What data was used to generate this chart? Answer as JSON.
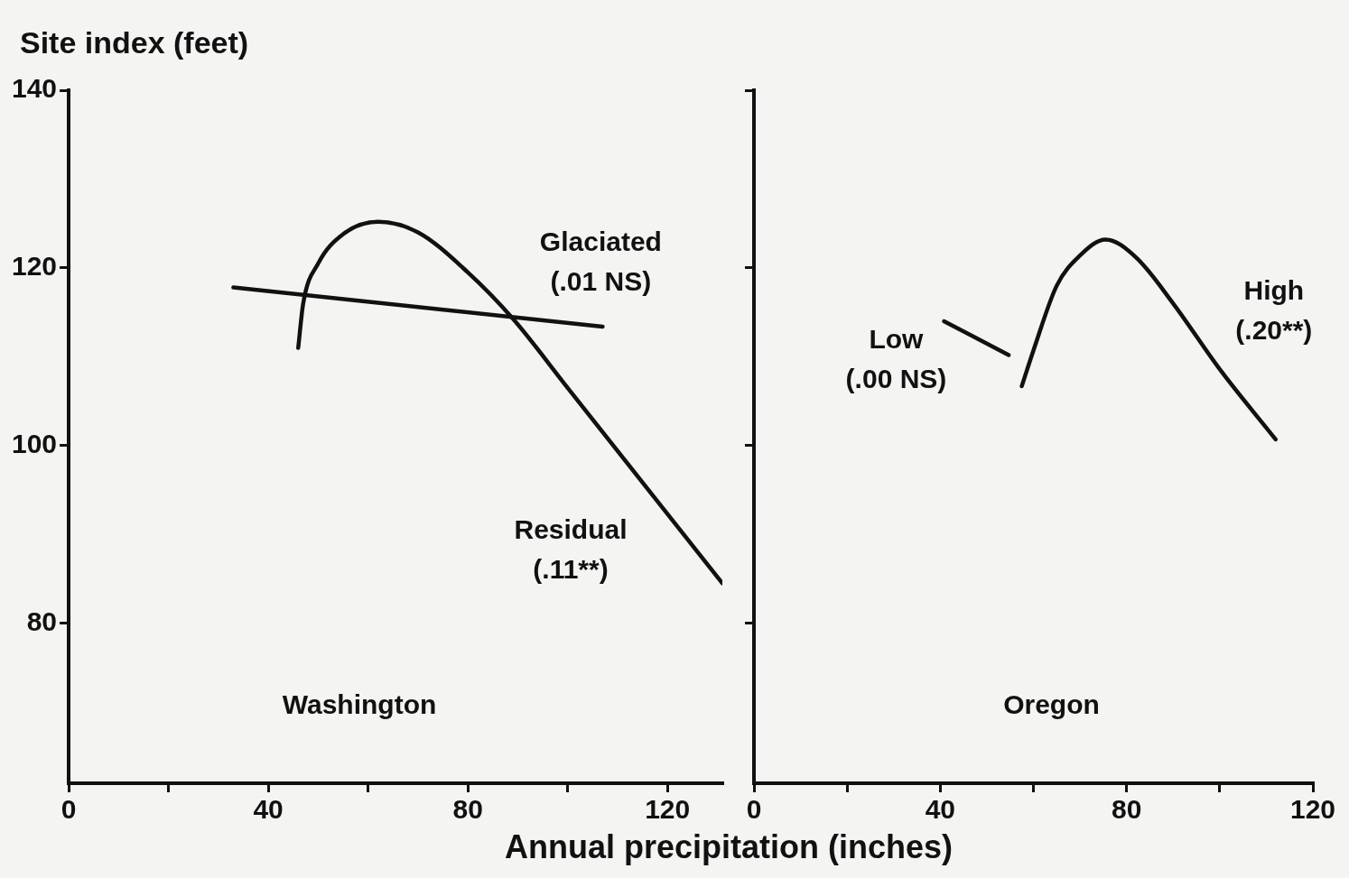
{
  "chart_data": [
    {
      "type": "line",
      "ylabel": "Site index (feet)",
      "xlabel": "Annual precipitation (inches)",
      "annotations": [
        "Washington"
      ],
      "xlim": [
        0,
        131
      ],
      "xticks": [
        0,
        {
          "value": 20,
          "label": null
        },
        40,
        {
          "value": 60,
          "label": null
        },
        80,
        {
          "value": 100,
          "label": null
        },
        120
      ],
      "ylim": [
        62,
        140
      ],
      "yticks": [
        80,
        100,
        120,
        140
      ],
      "grid": false,
      "legend": false,
      "marker": "none",
      "line_style": "solid",
      "series": [
        {
          "name": "Glaciated (.01 NS)",
          "color": "#111111",
          "x": [
            33,
            107
          ],
          "values": [
            117.8,
            113.4
          ]
        },
        {
          "name": "Residual (.11**)",
          "color": "#111111",
          "x": [
            46,
            47,
            50,
            55,
            62,
            70,
            80,
            89,
            100,
            131
          ],
          "values": [
            111,
            116,
            120.5,
            123.8,
            125.2,
            124,
            119.5,
            114.3,
            106.5,
            84.5
          ]
        }
      ]
    },
    {
      "type": "line",
      "annotations": [
        "Oregon"
      ],
      "tick_labels": "x",
      "xlim": [
        0,
        120
      ],
      "xticks": [
        0,
        {
          "value": 20,
          "label": null
        },
        40,
        {
          "value": 60,
          "label": null
        },
        80,
        {
          "value": 100,
          "label": null
        },
        120
      ],
      "ylim": [
        62,
        140
      ],
      "yticks": [
        {
          "value": 80,
          "label": null
        },
        {
          "value": 100,
          "label": null
        },
        {
          "value": 120,
          "label": null
        },
        {
          "value": 140,
          "label": null
        }
      ],
      "grid": false,
      "legend": false,
      "marker": "none",
      "line_style": "solid",
      "series": [
        {
          "name": "Low (.00 NS)",
          "color": "#111111",
          "x": [
            40.8,
            54.7
          ],
          "values": [
            114,
            110.2
          ]
        },
        {
          "name": "High (.20**)",
          "color": "#111111",
          "x": [
            57.5,
            60,
            65,
            70,
            75.5,
            82,
            90,
            100,
            112
          ],
          "values": [
            106.7,
            110.7,
            118,
            121.4,
            123.2,
            121.2,
            116,
            108.6,
            100.7
          ]
        }
      ]
    }
  ]
}
